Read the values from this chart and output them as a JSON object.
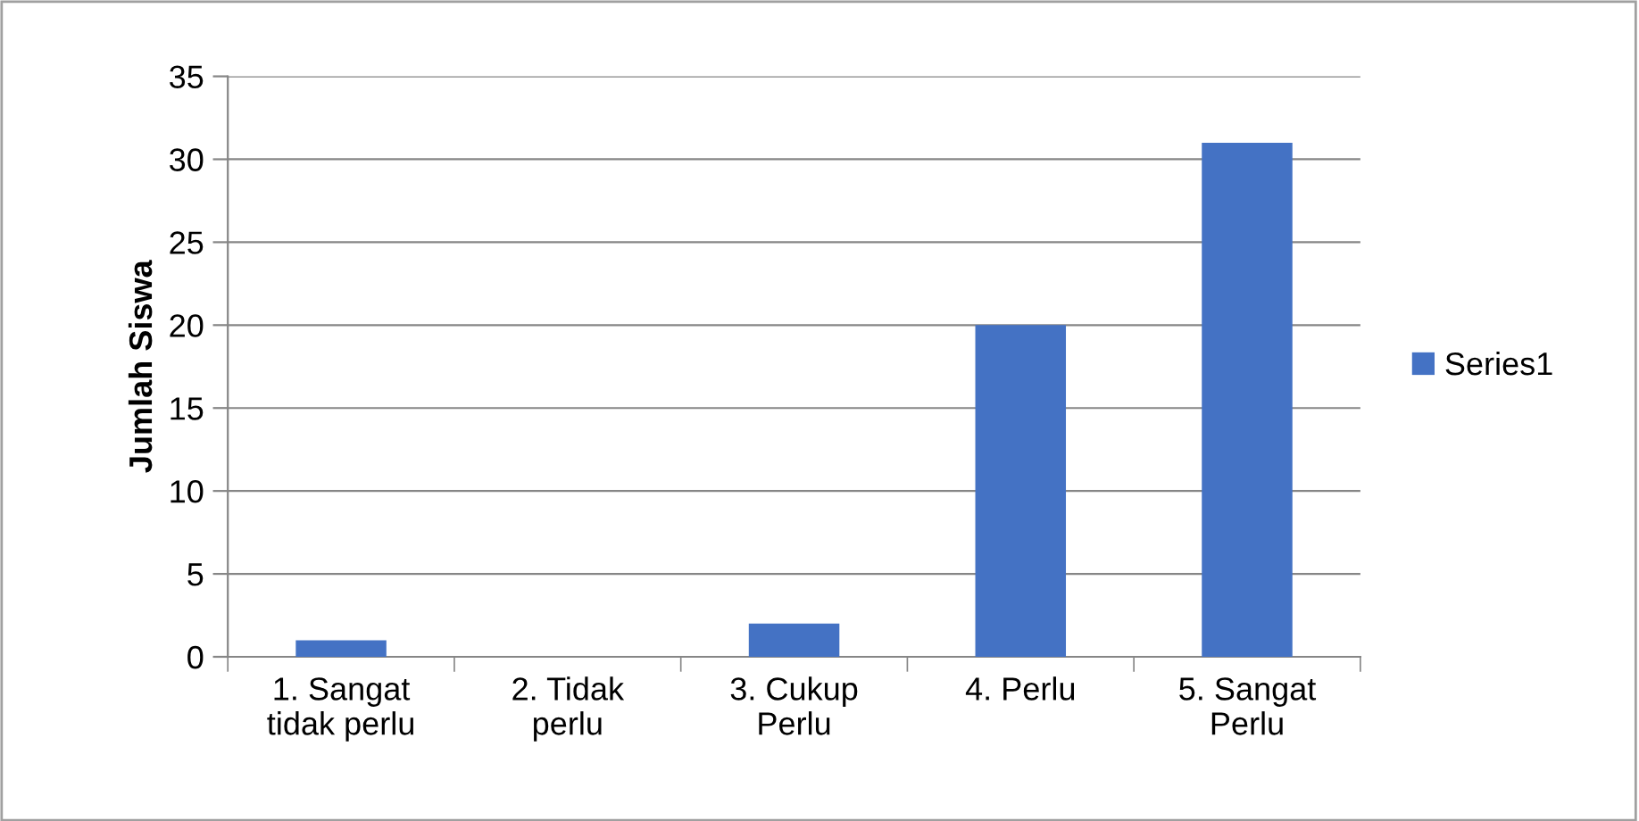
{
  "chart_data": {
    "type": "bar",
    "ylabel": "Jumlah Siswa",
    "categories": [
      "1. Sangat\ntidak perlu",
      "2. Tidak\nperlu",
      "3. Cukup\nPerlu",
      "4. Perlu",
      "5. Sangat\nPerlu"
    ],
    "series": [
      {
        "name": "Series1",
        "color": "#4472c4",
        "values": [
          1,
          0,
          2,
          20,
          31
        ]
      }
    ],
    "ylim": [
      0,
      35
    ],
    "yticks": [
      0,
      5,
      10,
      15,
      20,
      25,
      30,
      35
    ],
    "grid": "y",
    "legend": "right"
  }
}
